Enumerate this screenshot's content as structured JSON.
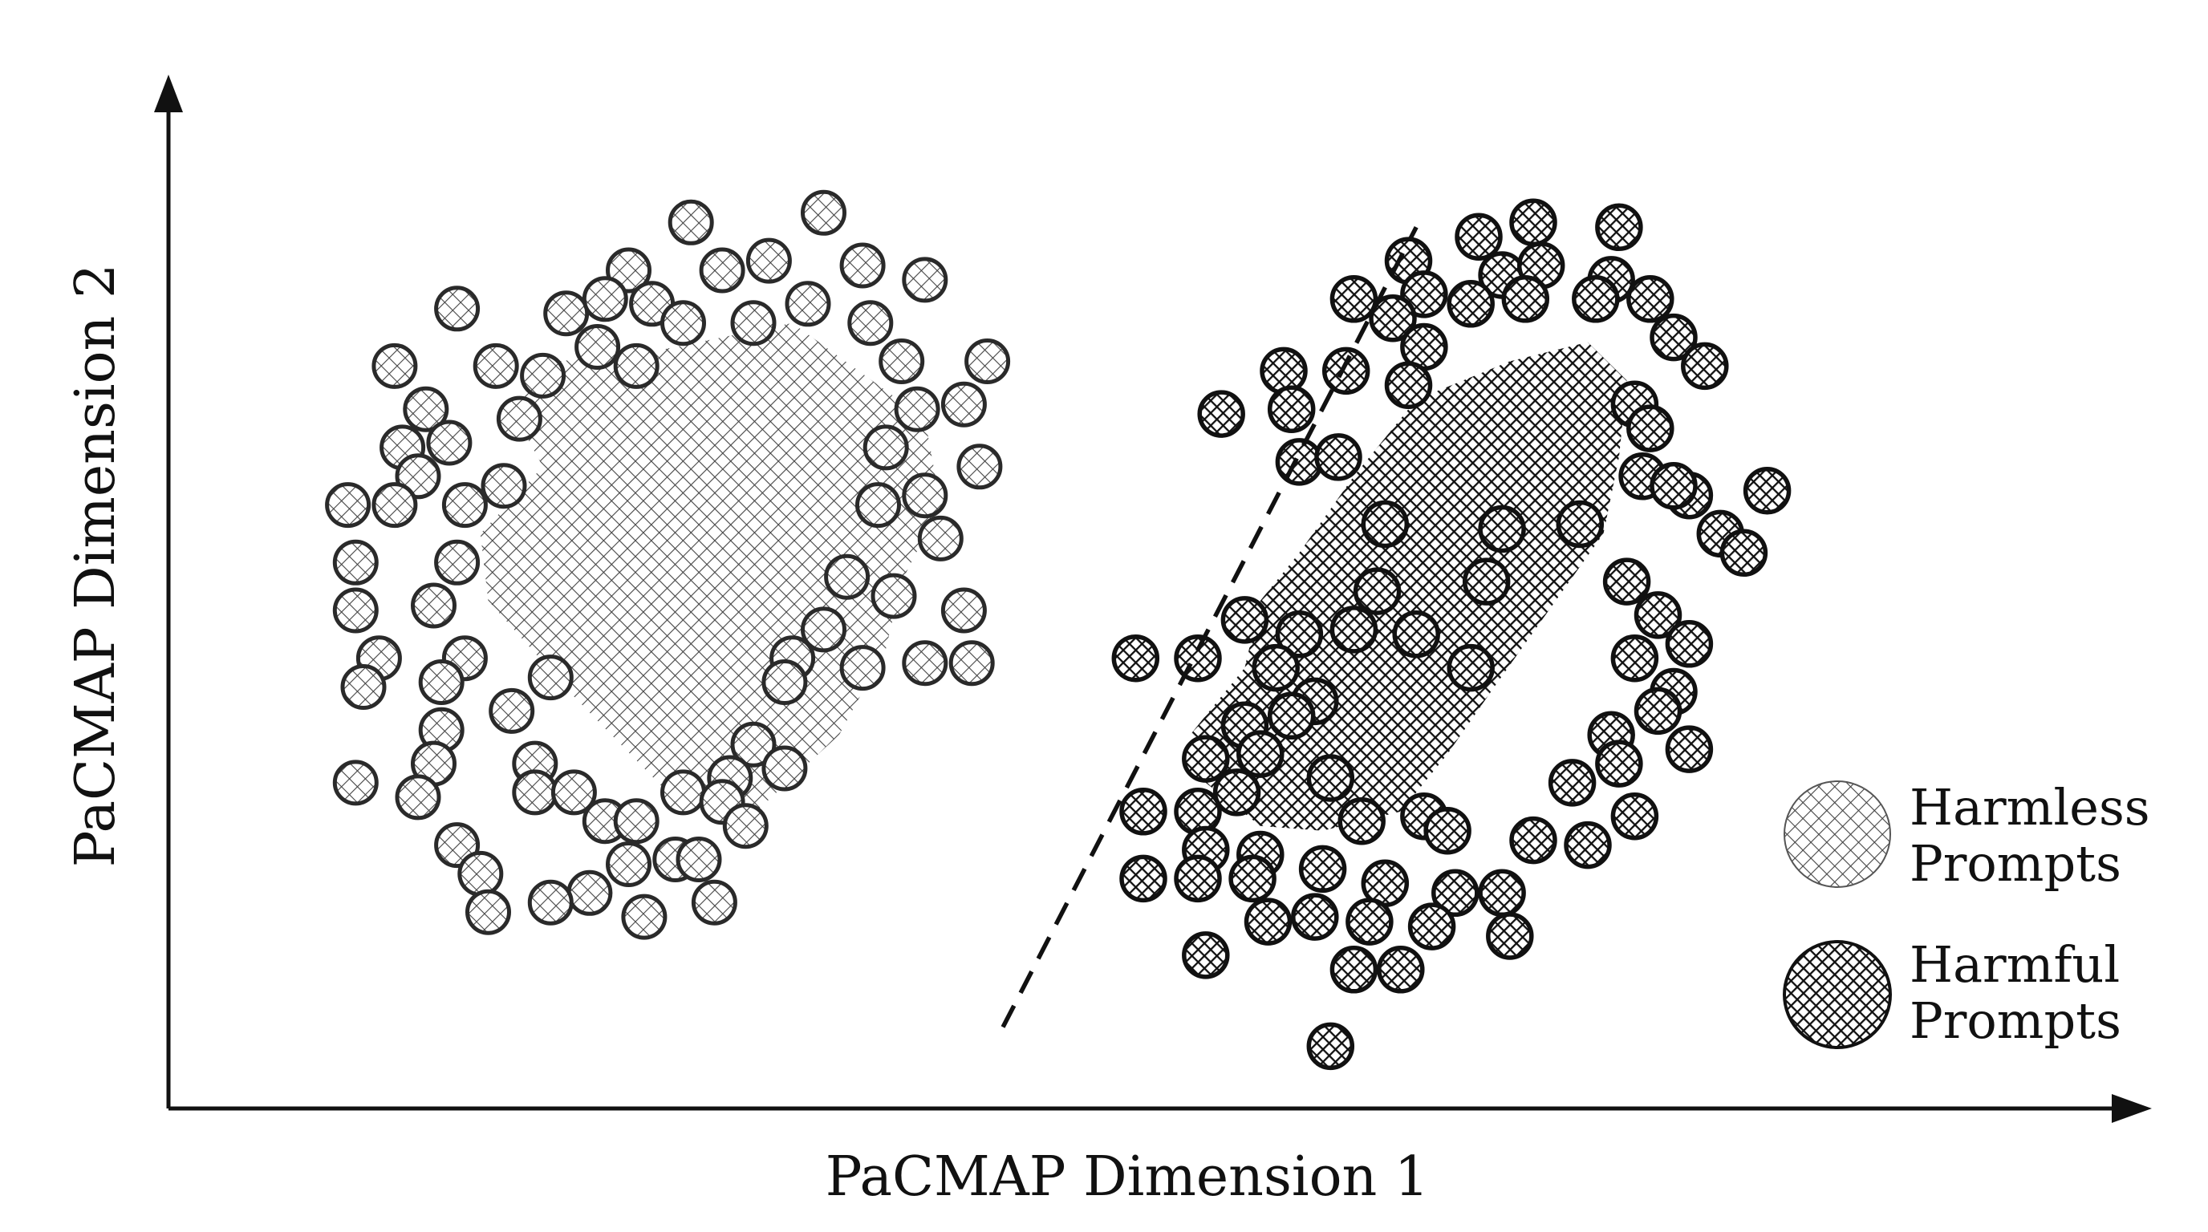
{
  "chart_data": {
    "type": "scatter",
    "xlabel": "PaCMAP Dimension 1",
    "ylabel": "PaCMAP Dimension 2",
    "grid": false,
    "ticks": false,
    "legend_position": "bottom-right",
    "decision_boundary": {
      "style": "dashed",
      "points": [
        [
          5.35,
          0.85
        ],
        [
          8.0,
          9.2
        ]
      ]
    },
    "series": [
      {
        "name_lines": [
          "Harmless",
          "Prompts"
        ],
        "color": "#bdbdbd",
        "pattern": "light-crosshatch",
        "dense_core": [
          [
            2.5,
            7.8
          ],
          [
            3.1,
            7.9
          ],
          [
            4.0,
            8.2
          ],
          [
            4.85,
            7.2
          ],
          [
            4.95,
            6.3
          ],
          [
            4.7,
            5.5
          ],
          [
            4.6,
            4.8
          ],
          [
            4.3,
            3.9
          ],
          [
            3.7,
            3.0
          ],
          [
            3.2,
            3.3
          ],
          [
            2.6,
            4.3
          ],
          [
            2.05,
            5.3
          ],
          [
            2.0,
            6.0
          ],
          [
            2.4,
            6.7
          ],
          [
            2.2,
            7.3
          ]
        ],
        "points": [
          [
            3.35,
            9.25
          ],
          [
            4.2,
            9.35
          ],
          [
            2.95,
            8.75
          ],
          [
            3.55,
            8.75
          ],
          [
            3.85,
            8.85
          ],
          [
            4.45,
            8.8
          ],
          [
            4.85,
            8.65
          ],
          [
            1.85,
            8.35
          ],
          [
            2.55,
            8.3
          ],
          [
            2.8,
            8.45
          ],
          [
            3.1,
            8.4
          ],
          [
            3.3,
            8.2
          ],
          [
            3.75,
            8.2
          ],
          [
            4.1,
            8.4
          ],
          [
            4.5,
            8.2
          ],
          [
            1.45,
            7.75
          ],
          [
            2.1,
            7.75
          ],
          [
            2.4,
            7.65
          ],
          [
            2.75,
            7.95
          ],
          [
            3.0,
            7.75
          ],
          [
            4.7,
            7.8
          ],
          [
            5.25,
            7.8
          ],
          [
            1.65,
            7.3
          ],
          [
            2.25,
            7.2
          ],
          [
            4.8,
            7.3
          ],
          [
            5.1,
            7.35
          ],
          [
            1.5,
            6.9
          ],
          [
            1.8,
            6.95
          ],
          [
            4.6,
            6.9
          ],
          [
            5.2,
            6.7
          ],
          [
            1.6,
            6.6
          ],
          [
            2.15,
            6.5
          ],
          [
            4.85,
            6.4
          ],
          [
            1.15,
            6.3
          ],
          [
            1.45,
            6.3
          ],
          [
            1.9,
            6.3
          ],
          [
            4.55,
            6.3
          ],
          [
            4.95,
            5.95
          ],
          [
            1.2,
            5.7
          ],
          [
            1.85,
            5.7
          ],
          [
            4.35,
            5.55
          ],
          [
            4.65,
            5.35
          ],
          [
            5.1,
            5.2
          ],
          [
            1.2,
            5.2
          ],
          [
            1.7,
            5.25
          ],
          [
            4.2,
            5.0
          ],
          [
            1.35,
            4.7
          ],
          [
            1.9,
            4.7
          ],
          [
            4.0,
            4.7
          ],
          [
            4.45,
            4.6
          ],
          [
            4.85,
            4.65
          ],
          [
            5.15,
            4.65
          ],
          [
            1.25,
            4.4
          ],
          [
            1.75,
            4.45
          ],
          [
            3.95,
            4.45
          ],
          [
            1.75,
            3.95
          ],
          [
            2.45,
            4.5
          ],
          [
            2.2,
            4.15
          ],
          [
            3.75,
            3.8
          ],
          [
            2.35,
            3.6
          ],
          [
            1.7,
            3.6
          ],
          [
            3.95,
            3.55
          ],
          [
            1.2,
            3.4
          ],
          [
            1.6,
            3.25
          ],
          [
            2.35,
            3.3
          ],
          [
            2.6,
            3.3
          ],
          [
            3.3,
            3.3
          ],
          [
            3.6,
            3.45
          ],
          [
            3.55,
            3.2
          ],
          [
            2.8,
            3.0
          ],
          [
            3.0,
            3.0
          ],
          [
            3.7,
            2.95
          ],
          [
            1.85,
            2.75
          ],
          [
            3.25,
            2.6
          ],
          [
            2.95,
            2.55
          ],
          [
            3.4,
            2.6
          ],
          [
            2.0,
            2.45
          ],
          [
            2.7,
            2.25
          ],
          [
            3.5,
            2.15
          ],
          [
            3.05,
            2.0
          ],
          [
            2.45,
            2.15
          ],
          [
            2.05,
            2.05
          ]
        ]
      },
      {
        "name_lines": [
          "Harmful",
          "Prompts"
        ],
        "color": "#222222",
        "pattern": "dense-crosshatch",
        "dense_core": [
          [
            6.9,
            4.6
          ],
          [
            7.0,
            5.3
          ],
          [
            7.25,
            5.8
          ],
          [
            7.6,
            6.6
          ],
          [
            8.0,
            7.4
          ],
          [
            8.6,
            7.8
          ],
          [
            9.1,
            8.0
          ],
          [
            9.35,
            7.6
          ],
          [
            9.3,
            6.8
          ],
          [
            9.2,
            6.0
          ],
          [
            8.85,
            5.2
          ],
          [
            8.5,
            4.4
          ],
          [
            8.2,
            3.7
          ],
          [
            7.9,
            3.1
          ],
          [
            7.4,
            2.9
          ],
          [
            7.0,
            2.95
          ],
          [
            6.65,
            3.4
          ],
          [
            6.55,
            3.9
          ]
        ],
        "points": [
          [
            8.4,
            9.1
          ],
          [
            8.75,
            9.25
          ],
          [
            9.3,
            9.2
          ],
          [
            7.95,
            8.85
          ],
          [
            8.55,
            8.7
          ],
          [
            8.8,
            8.8
          ],
          [
            9.25,
            8.65
          ],
          [
            7.6,
            8.45
          ],
          [
            8.05,
            8.5
          ],
          [
            8.35,
            8.4
          ],
          [
            8.7,
            8.45
          ],
          [
            9.15,
            8.45
          ],
          [
            9.5,
            8.45
          ],
          [
            7.85,
            8.25
          ],
          [
            9.65,
            8.05
          ],
          [
            7.15,
            7.7
          ],
          [
            7.55,
            7.7
          ],
          [
            8.05,
            7.95
          ],
          [
            9.85,
            7.75
          ],
          [
            6.75,
            7.25
          ],
          [
            7.2,
            7.3
          ],
          [
            7.95,
            7.55
          ],
          [
            9.4,
            7.35
          ],
          [
            9.5,
            7.1
          ],
          [
            7.25,
            6.75
          ],
          [
            7.5,
            6.8
          ],
          [
            9.45,
            6.6
          ],
          [
            9.75,
            6.4
          ],
          [
            7.8,
            6.1
          ],
          [
            8.55,
            6.05
          ],
          [
            9.05,
            6.1
          ],
          [
            9.65,
            6.5
          ],
          [
            10.25,
            6.45
          ],
          [
            9.95,
            6.0
          ],
          [
            7.75,
            5.4
          ],
          [
            8.45,
            5.5
          ],
          [
            9.35,
            5.5
          ],
          [
            9.55,
            5.15
          ],
          [
            10.1,
            5.8
          ],
          [
            6.9,
            5.1
          ],
          [
            7.25,
            4.95
          ],
          [
            7.6,
            5.0
          ],
          [
            8.0,
            4.95
          ],
          [
            9.4,
            4.7
          ],
          [
            9.75,
            4.85
          ],
          [
            6.2,
            4.7
          ],
          [
            6.6,
            4.7
          ],
          [
            7.1,
            4.6
          ],
          [
            8.35,
            4.6
          ],
          [
            9.65,
            4.35
          ],
          [
            7.35,
            4.25
          ],
          [
            9.55,
            4.15
          ],
          [
            6.9,
            4.0
          ],
          [
            7.2,
            4.1
          ],
          [
            9.25,
            3.9
          ],
          [
            6.65,
            3.65
          ],
          [
            7.0,
            3.7
          ],
          [
            9.3,
            3.6
          ],
          [
            9.75,
            3.75
          ],
          [
            6.85,
            3.3
          ],
          [
            7.45,
            3.45
          ],
          [
            9.0,
            3.4
          ],
          [
            6.25,
            3.1
          ],
          [
            6.6,
            3.1
          ],
          [
            7.65,
            3.0
          ],
          [
            8.05,
            3.05
          ],
          [
            9.4,
            3.05
          ],
          [
            6.65,
            2.7
          ],
          [
            7.0,
            2.65
          ],
          [
            8.2,
            2.9
          ],
          [
            8.75,
            2.8
          ],
          [
            9.1,
            2.75
          ],
          [
            6.25,
            2.4
          ],
          [
            6.6,
            2.4
          ],
          [
            6.95,
            2.4
          ],
          [
            7.4,
            2.5
          ],
          [
            7.8,
            2.35
          ],
          [
            8.25,
            2.25
          ],
          [
            8.55,
            2.25
          ],
          [
            7.05,
            1.95
          ],
          [
            7.35,
            2.0
          ],
          [
            7.7,
            1.95
          ],
          [
            8.1,
            1.9
          ],
          [
            8.6,
            1.8
          ],
          [
            6.65,
            1.6
          ],
          [
            7.6,
            1.45
          ],
          [
            7.9,
            1.45
          ],
          [
            7.45,
            0.65
          ]
        ]
      }
    ],
    "xlim": [
      0,
      12.5
    ],
    "ylim": [
      0,
      10.5
    ]
  }
}
